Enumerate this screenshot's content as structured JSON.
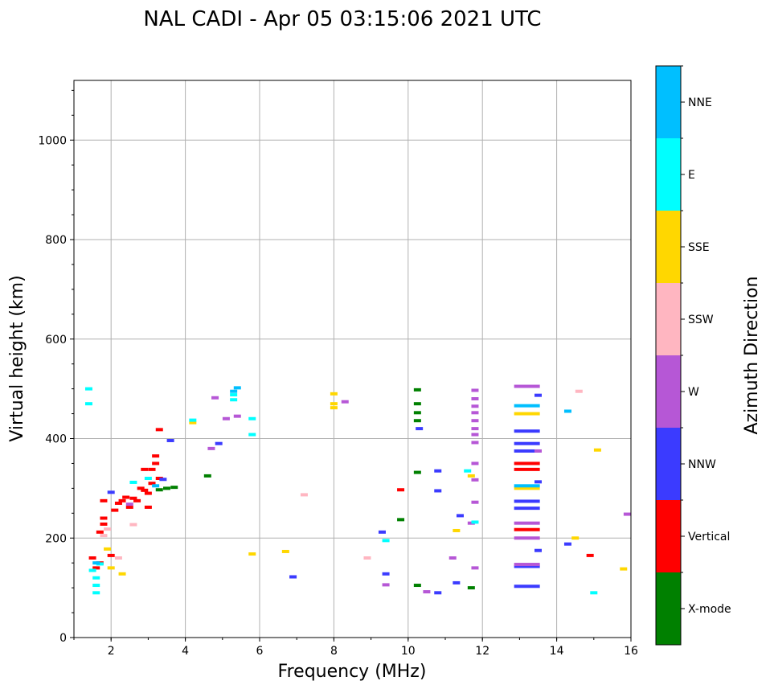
{
  "chart_data": {
    "type": "scatter",
    "title": "NAL CADI - Apr 05 03:15:06 2021 UTC",
    "xlabel": "Frequency (MHz)",
    "ylabel": "Virtual height (km)",
    "xlim": [
      1,
      16
    ],
    "ylim": [
      0,
      1120
    ],
    "xticks": [
      "2",
      "4",
      "6",
      "8",
      "10",
      "12",
      "14",
      "16"
    ],
    "yticks": [
      "0",
      "200",
      "400",
      "600",
      "800",
      "1000"
    ],
    "grid": true,
    "colorbar": {
      "label": "Azimuth Direction",
      "categories": [
        "X-mode",
        "Vertical",
        "NNW",
        "W",
        "SSW",
        "SSE",
        "E",
        "NNE"
      ],
      "colors": [
        "#008000",
        "#ff0000",
        "#3b3bff",
        "#b657d6",
        "#ffb6c1",
        "#ffd700",
        "#00ffff",
        "#00bfff"
      ]
    },
    "series": [
      {
        "name": "X-mode",
        "points": [
          [
            3.5,
            300
          ],
          [
            3.7,
            302
          ],
          [
            3.3,
            297
          ],
          [
            10.25,
            498
          ],
          [
            10.25,
            470
          ],
          [
            10.25,
            452
          ],
          [
            10.25,
            436
          ],
          [
            10.25,
            332
          ],
          [
            10.25,
            105
          ],
          [
            9.8,
            237
          ],
          [
            11.7,
            100
          ],
          [
            4.6,
            325
          ]
        ]
      },
      {
        "name": "Vertical",
        "points": [
          [
            1.8,
            275
          ],
          [
            1.8,
            228
          ],
          [
            1.8,
            240
          ],
          [
            1.7,
            212
          ],
          [
            1.5,
            160
          ],
          [
            1.6,
            140
          ],
          [
            1.7,
            150
          ],
          [
            2.0,
            165
          ],
          [
            2.1,
            256
          ],
          [
            2.2,
            270
          ],
          [
            2.3,
            275
          ],
          [
            2.4,
            282
          ],
          [
            2.5,
            262
          ],
          [
            2.6,
            280
          ],
          [
            2.7,
            275
          ],
          [
            2.8,
            300
          ],
          [
            2.9,
            296
          ],
          [
            3.0,
            290
          ],
          [
            3.1,
            310
          ],
          [
            3.0,
            262
          ],
          [
            3.1,
            338
          ],
          [
            3.2,
            350
          ],
          [
            3.2,
            365
          ],
          [
            3.3,
            320
          ],
          [
            3.3,
            418
          ],
          [
            2.9,
            338
          ],
          [
            13.2,
            350
          ],
          [
            13.2,
            338
          ],
          [
            13.2,
            217
          ],
          [
            14.9,
            165
          ],
          [
            9.8,
            297
          ]
        ]
      },
      {
        "name": "NNW",
        "points": [
          [
            3.6,
            396
          ],
          [
            3.4,
            318
          ],
          [
            13.2,
            390
          ],
          [
            13.2,
            375
          ],
          [
            13.2,
            415
          ],
          [
            13.2,
            274
          ],
          [
            13.2,
            260
          ],
          [
            13.2,
            143
          ],
          [
            13.2,
            103
          ],
          [
            13.5,
            487
          ],
          [
            13.5,
            313
          ],
          [
            13.5,
            175
          ],
          [
            14.3,
            188
          ],
          [
            10.8,
            335
          ],
          [
            10.8,
            295
          ],
          [
            10.8,
            90
          ],
          [
            11.4,
            245
          ],
          [
            11.3,
            110
          ],
          [
            9.3,
            212
          ],
          [
            9.4,
            128
          ],
          [
            10.3,
            420
          ],
          [
            4.9,
            390
          ],
          [
            6.9,
            122
          ],
          [
            2.0,
            292
          ]
        ]
      },
      {
        "name": "W",
        "points": [
          [
            4.8,
            482
          ],
          [
            5.1,
            440
          ],
          [
            5.4,
            445
          ],
          [
            8.3,
            474
          ],
          [
            13.2,
            505
          ],
          [
            13.2,
            230
          ],
          [
            13.2,
            200
          ],
          [
            13.2,
            147
          ],
          [
            13.5,
            375
          ],
          [
            11.8,
            497
          ],
          [
            11.8,
            480
          ],
          [
            11.8,
            465
          ],
          [
            11.8,
            452
          ],
          [
            11.8,
            436
          ],
          [
            11.8,
            420
          ],
          [
            11.8,
            408
          ],
          [
            11.8,
            392
          ],
          [
            11.8,
            350
          ],
          [
            11.8,
            317
          ],
          [
            11.8,
            272
          ],
          [
            11.8,
            140
          ],
          [
            11.7,
            230
          ],
          [
            15.9,
            248
          ],
          [
            9.4,
            106
          ],
          [
            11.2,
            160
          ],
          [
            10.5,
            92
          ],
          [
            4.7,
            380
          ],
          [
            2.5,
            268
          ]
        ]
      },
      {
        "name": "SSW",
        "points": [
          [
            8.9,
            160
          ],
          [
            2.2,
            160
          ],
          [
            1.9,
            218
          ],
          [
            1.8,
            205
          ],
          [
            7.2,
            287
          ],
          [
            2.6,
            227
          ],
          [
            14.6,
            495
          ]
        ]
      },
      {
        "name": "SSE",
        "points": [
          [
            4.2,
            432
          ],
          [
            8.0,
            490
          ],
          [
            8.0,
            470
          ],
          [
            8.0,
            462
          ],
          [
            13.2,
            450
          ],
          [
            13.2,
            300
          ],
          [
            14.5,
            200
          ],
          [
            15.1,
            377
          ],
          [
            15.8,
            138
          ],
          [
            6.7,
            173
          ],
          [
            11.3,
            215
          ],
          [
            11.7,
            325
          ],
          [
            5.8,
            168
          ],
          [
            2.3,
            128
          ],
          [
            2.0,
            140
          ],
          [
            1.9,
            178
          ]
        ]
      },
      {
        "name": "E",
        "points": [
          [
            4.2,
            437
          ],
          [
            5.3,
            478
          ],
          [
            5.3,
            488
          ],
          [
            11.6,
            335
          ],
          [
            11.8,
            232
          ],
          [
            15.0,
            90
          ],
          [
            9.4,
            195
          ],
          [
            1.6,
            90
          ],
          [
            1.6,
            105
          ],
          [
            1.6,
            120
          ],
          [
            1.5,
            135
          ],
          [
            1.7,
            148
          ],
          [
            1.4,
            500
          ],
          [
            1.4,
            470
          ],
          [
            3.0,
            320
          ],
          [
            2.6,
            312
          ],
          [
            5.8,
            440
          ],
          [
            5.8,
            408
          ]
        ]
      },
      {
        "name": "NNE",
        "points": [
          [
            5.4,
            502
          ],
          [
            5.3,
            495
          ],
          [
            13.2,
            466
          ],
          [
            14.3,
            455
          ],
          [
            13.2,
            305
          ],
          [
            1.6,
            150
          ],
          [
            3.2,
            305
          ]
        ]
      }
    ]
  }
}
